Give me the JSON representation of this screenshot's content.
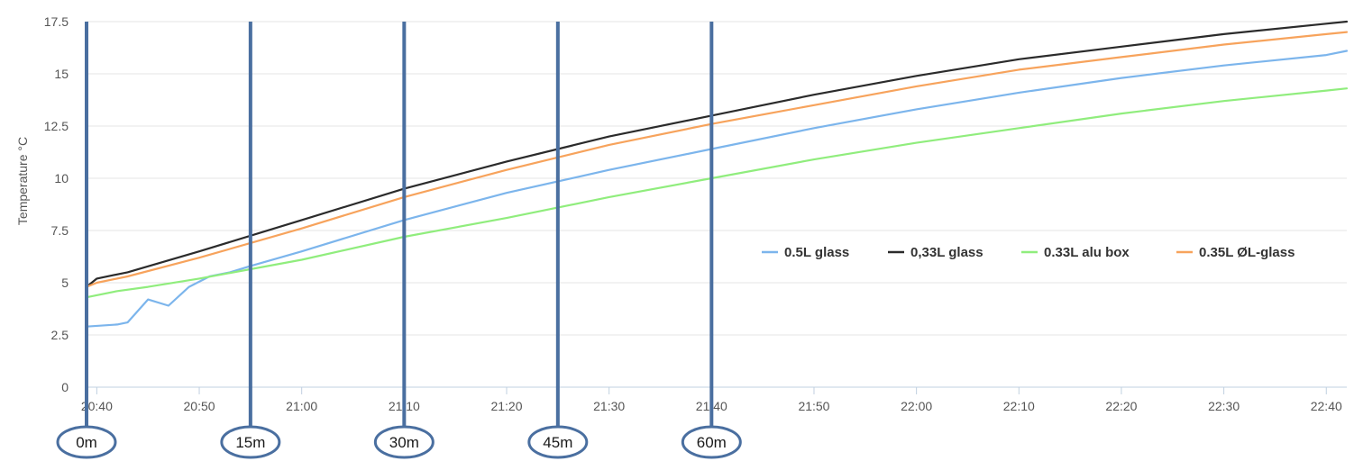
{
  "chart_data": {
    "type": "line",
    "title": "",
    "xlabel": "",
    "ylabel": "Temperature °C",
    "xlim": [
      "20:39",
      "22:42"
    ],
    "ylim": [
      0,
      17.5
    ],
    "y_ticks": [
      "0",
      "2.5",
      "5",
      "7.5",
      "10",
      "12.5",
      "15",
      "17.5"
    ],
    "x_ticks": [
      "20:40",
      "20:50",
      "21:00",
      "21:10",
      "21:20",
      "21:30",
      "21:40",
      "21:50",
      "22:00",
      "22:10",
      "22:20",
      "22:30",
      "22:40"
    ],
    "grid": "horizontal",
    "legend_position": "right",
    "series": [
      {
        "name": "0.5L glass",
        "color": "#7cb5ec",
        "points": [
          [
            "20:39",
            2.9
          ],
          [
            "20:42",
            3.0
          ],
          [
            "20:43",
            3.1
          ],
          [
            "20:45",
            4.2
          ],
          [
            "20:47",
            3.9
          ],
          [
            "20:49",
            4.8
          ],
          [
            "20:51",
            5.3
          ],
          [
            "20:53",
            5.5
          ],
          [
            "20:55",
            5.8
          ],
          [
            "21:00",
            6.5
          ],
          [
            "21:10",
            8.0
          ],
          [
            "21:20",
            9.3
          ],
          [
            "21:30",
            10.4
          ],
          [
            "21:40",
            11.4
          ],
          [
            "21:50",
            12.4
          ],
          [
            "22:00",
            13.3
          ],
          [
            "22:10",
            14.1
          ],
          [
            "22:20",
            14.8
          ],
          [
            "22:30",
            15.4
          ],
          [
            "22:40",
            15.9
          ],
          [
            "22:42",
            16.1
          ]
        ]
      },
      {
        "name": "0,33L glass",
        "color": "#2b2b2b",
        "points": [
          [
            "20:39",
            4.8
          ],
          [
            "20:40",
            5.2
          ],
          [
            "20:43",
            5.5
          ],
          [
            "20:50",
            6.5
          ],
          [
            "21:00",
            8.0
          ],
          [
            "21:10",
            9.5
          ],
          [
            "21:20",
            10.8
          ],
          [
            "21:30",
            12.0
          ],
          [
            "21:40",
            13.0
          ],
          [
            "21:50",
            14.0
          ],
          [
            "22:00",
            14.9
          ],
          [
            "22:10",
            15.7
          ],
          [
            "22:20",
            16.3
          ],
          [
            "22:30",
            16.9
          ],
          [
            "22:40",
            17.4
          ],
          [
            "22:42",
            17.5
          ]
        ]
      },
      {
        "name": "0.33L alu box",
        "color": "#90ed7d",
        "points": [
          [
            "20:39",
            4.3
          ],
          [
            "20:42",
            4.6
          ],
          [
            "20:45",
            4.8
          ],
          [
            "20:50",
            5.2
          ],
          [
            "21:00",
            6.1
          ],
          [
            "21:10",
            7.2
          ],
          [
            "21:20",
            8.1
          ],
          [
            "21:30",
            9.1
          ],
          [
            "21:40",
            10.0
          ],
          [
            "21:50",
            10.9
          ],
          [
            "22:00",
            11.7
          ],
          [
            "22:10",
            12.4
          ],
          [
            "22:20",
            13.1
          ],
          [
            "22:30",
            13.7
          ],
          [
            "22:40",
            14.2
          ],
          [
            "22:42",
            14.3
          ]
        ]
      },
      {
        "name": "0.35L ØL-glass",
        "color": "#f7a35c",
        "points": [
          [
            "20:39",
            4.8
          ],
          [
            "20:40",
            5.0
          ],
          [
            "20:43",
            5.3
          ],
          [
            "20:50",
            6.2
          ],
          [
            "21:00",
            7.6
          ],
          [
            "21:10",
            9.1
          ],
          [
            "21:20",
            10.4
          ],
          [
            "21:30",
            11.6
          ],
          [
            "21:40",
            12.6
          ],
          [
            "21:50",
            13.5
          ],
          [
            "22:00",
            14.4
          ],
          [
            "22:10",
            15.2
          ],
          [
            "22:20",
            15.8
          ],
          [
            "22:30",
            16.4
          ],
          [
            "22:40",
            16.9
          ],
          [
            "22:42",
            17.0
          ]
        ]
      }
    ],
    "annotations": {
      "color": "#4a6fa0",
      "markers": [
        {
          "label": "0m",
          "time": "20:39"
        },
        {
          "label": "15m",
          "time": "20:55"
        },
        {
          "label": "30m",
          "time": "21:10"
        },
        {
          "label": "45m",
          "time": "21:25"
        },
        {
          "label": "60m",
          "time": "21:40"
        }
      ]
    }
  }
}
